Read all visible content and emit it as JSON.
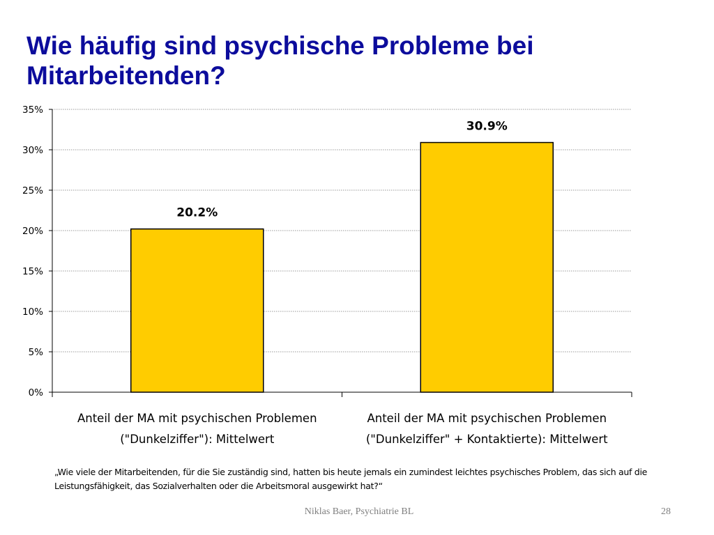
{
  "slide": {
    "title": "Wie häufig sind psychische Probleme bei Mitarbeitenden?",
    "note": "„Wie viele der Mitarbeitenden, für die Sie zuständig sind, hatten bis heute jemals ein zumindest leichtes psychisches Problem, das sich auf die Leistungsfähigkeit, das Sozialverhalten oder die Arbeitsmoral ausgewirkt hat?“",
    "footer": "Niklas Baer, Psychiatrie BL",
    "page_number": "28"
  },
  "chart_data": {
    "type": "bar",
    "title": "",
    "xlabel": "",
    "ylabel": "",
    "categories": [
      [
        "Anteil der MA mit psychischen Problemen",
        "(\"Dunkelziffer\"): Mittelwert"
      ],
      [
        "Anteil der MA mit psychischen Problemen",
        "(\"Dunkelziffer\" + Kontaktierte): Mittelwert"
      ]
    ],
    "values": [
      20.2,
      30.9
    ],
    "data_labels": [
      "20.2%",
      "30.9%"
    ],
    "ylim": [
      0,
      35
    ],
    "yticks": [
      0,
      5,
      10,
      15,
      20,
      25,
      30,
      35
    ],
    "ytick_labels": [
      "0%",
      "5%",
      "10%",
      "15%",
      "20%",
      "25%",
      "30%",
      "35%"
    ],
    "grid": true,
    "bar_color": "#ffcc00",
    "bar_edge_color": "#000000"
  }
}
